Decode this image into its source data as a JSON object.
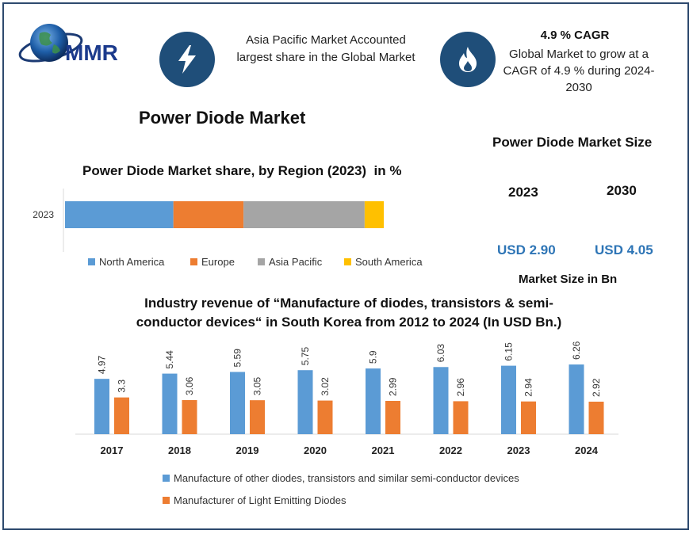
{
  "brand": {
    "logo_text": "MMR"
  },
  "header": {
    "left_text": "Asia Pacific Market Accounted largest share in the Global Market",
    "cagr_title": "4.9 % CAGR",
    "cagr_text": "Global Market to grow at a CAGR of 4.9 % during 2024-2030"
  },
  "icons": {
    "left": "lightning-bolt-icon",
    "right": "flame-icon"
  },
  "page_title": "Power Diode Market",
  "market_size": {
    "title": "Power Diode Market Size",
    "years": [
      "2023",
      "2030"
    ],
    "values": [
      "USD 2.90",
      "USD 4.05"
    ],
    "note": "Market Size in Bn"
  },
  "colors": {
    "blue": "#5b9bd5",
    "orange": "#ed7d31",
    "gray": "#a5a5a5",
    "yellow": "#ffc000",
    "accent": "#2e75b6",
    "frame": "#2e4a6e"
  },
  "chart_data": [
    {
      "type": "bar",
      "orientation": "horizontal-stacked",
      "title": "Power Diode Market share, by Region (2023)  in %",
      "categories": [
        "2023"
      ],
      "series": [
        {
          "name": "North America",
          "values": [
            34
          ],
          "color": "#5b9bd5"
        },
        {
          "name": "Europe",
          "values": [
            22
          ],
          "color": "#ed7d31"
        },
        {
          "name": "Asia Pacific",
          "values": [
            38
          ],
          "color": "#a5a5a5"
        },
        {
          "name": "South America",
          "values": [
            6
          ],
          "color": "#ffc000"
        }
      ],
      "legend": "bottom"
    },
    {
      "type": "bar",
      "title": "Industry revenue of “Manufacture of diodes, transistors & semi-conductor devices“ in South Korea from 2012 to 2024 (In USD Bn.)",
      "categories": [
        "2017",
        "2018",
        "2019",
        "2020",
        "2021",
        "2022",
        "2023",
        "2024"
      ],
      "series": [
        {
          "name": "Manufacture of other diodes, transistors and similar semi-conductor devices",
          "values": [
            4.97,
            5.44,
            5.59,
            5.75,
            5.9,
            6.03,
            6.15,
            6.26
          ],
          "color": "#5b9bd5"
        },
        {
          "name": "Manufacturer of Light Emitting Diodes",
          "values": [
            3.3,
            3.06,
            3.05,
            3.02,
            2.99,
            2.96,
            2.94,
            2.92
          ],
          "color": "#ed7d31"
        }
      ],
      "legend": "bottom"
    }
  ]
}
